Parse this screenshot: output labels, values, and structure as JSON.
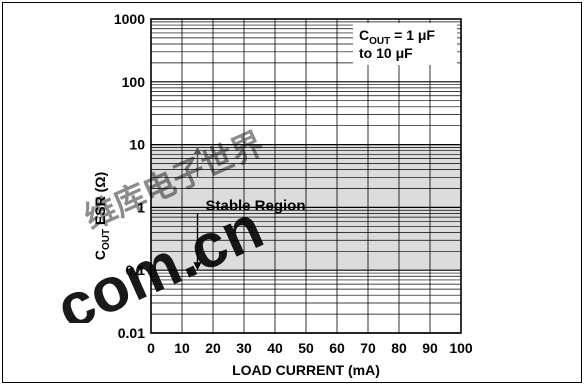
{
  "chart_data": {
    "type": "area",
    "x_axis": {
      "label": "LOAD CURRENT (mA)",
      "min": 0,
      "max": 100,
      "ticks": [
        0,
        10,
        20,
        30,
        40,
        50,
        60,
        70,
        80,
        90,
        100
      ],
      "tick_labels": [
        "0",
        "10",
        "20",
        "30",
        "40",
        "50",
        "60",
        "70",
        "80",
        "90",
        "100"
      ]
    },
    "y_axis": {
      "label_main": "C",
      "label_sub": "OUT",
      "label_rest": " ESR (Ω)",
      "scale": "log",
      "min": 0.01,
      "max": 1000,
      "ticks": [
        0.01,
        0.1,
        1,
        10,
        100,
        1000
      ],
      "tick_labels": [
        "0.01",
        "0.1",
        "1",
        "10",
        "100",
        "1000"
      ]
    },
    "grid": {
      "vertical": true,
      "horizontal_log_minor": true
    },
    "regions": [
      {
        "label": "Stable Region",
        "x_range": [
          0,
          100
        ],
        "y_range": [
          0.1,
          10
        ],
        "color": "#dcdcdc"
      }
    ],
    "annotation": {
      "line1_main": "C",
      "line1_sub": "OUT",
      "line1_rest": " = 1 μF",
      "line2": "to 10 μF",
      "placement": "top-right"
    },
    "arrows": {
      "x": 15,
      "upper_end": 10,
      "lower_end": 0.1
    }
  },
  "watermark": {
    "text": ".com.cn",
    "glyphs": "维库电子世界",
    "color": "#e8141c"
  }
}
